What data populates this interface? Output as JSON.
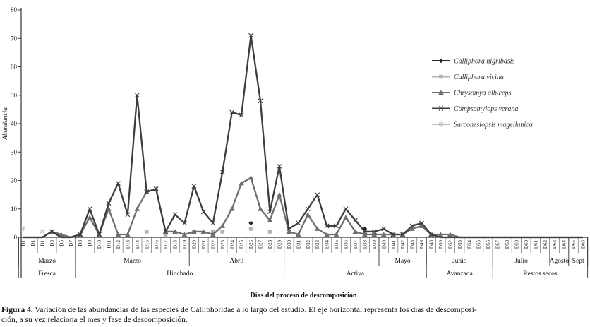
{
  "figure": {
    "caption_label": "Figura 4.",
    "caption_line1": " Variación de las abundancias de las especies de Calliphoridae a lo largo del estudio. El eje horizontal representa los días de descomposi-",
    "caption_line2": "ción, a su vez relaciona el mes y fase de descomposición."
  },
  "chart_data": {
    "type": "line",
    "title": "",
    "xlabel": "Días del proceso de descomposición",
    "ylabel": "Abundancia",
    "ylim": [
      0,
      80
    ],
    "yticks": [
      0,
      10,
      20,
      30,
      40,
      50,
      60,
      70,
      80
    ],
    "grid": false,
    "legend_position": "upper-right-inside",
    "x": [
      "D1",
      "D1",
      "D1",
      "D3",
      "D5",
      "D7",
      "D8",
      "D9",
      "D10",
      "D11",
      "D12",
      "D13",
      "D14",
      "D15",
      "D16",
      "D17",
      "D18",
      "D19",
      "D20",
      "D21",
      "D22",
      "D23",
      "D24",
      "D25",
      "D26",
      "D27",
      "D28",
      "D29",
      "D30",
      "D31",
      "D32",
      "D33",
      "D34",
      "D35",
      "D36",
      "D37",
      "D38",
      "D39",
      "D40",
      "D41",
      "D42",
      "D43",
      "D46",
      "D48",
      "D50",
      "D52",
      "D53",
      "D54",
      "D55",
      "D56",
      "D57",
      "D58",
      "D59",
      "D60",
      "D61",
      "D62",
      "D63",
      "D64",
      "D65",
      "D66"
    ],
    "series": [
      {
        "name": "Calliphora nigribasis",
        "marker": "diamond",
        "color": "#262626",
        "line": false,
        "values": [
          0,
          0,
          0,
          0,
          0,
          0,
          0,
          0,
          0,
          0,
          0,
          0,
          0,
          0,
          0,
          0,
          0,
          0,
          0,
          0,
          0,
          0,
          0,
          0,
          5,
          0,
          0,
          0,
          0,
          0,
          0,
          0,
          0,
          0,
          0,
          0,
          3,
          0,
          0,
          0,
          0,
          0,
          0,
          0,
          0,
          0,
          0,
          0,
          0,
          0,
          0,
          0,
          0,
          0,
          0,
          0,
          0,
          0,
          0,
          0
        ]
      },
      {
        "name": "Calliphora vicina",
        "marker": "square",
        "color": "#b3b3b3",
        "line": false,
        "values": [
          0,
          0,
          0,
          0,
          0,
          0,
          0,
          0,
          0,
          0,
          0,
          0,
          0,
          2,
          0,
          1,
          0,
          0,
          2,
          0,
          2,
          2,
          0,
          0,
          3,
          0,
          2,
          0,
          0,
          0,
          0,
          0,
          0,
          0,
          0,
          0,
          0,
          0,
          0,
          0,
          0,
          0,
          0,
          0,
          0,
          0,
          0,
          0,
          0,
          0,
          0,
          0,
          0,
          0,
          0,
          0,
          0,
          0,
          0,
          0
        ]
      },
      {
        "name": "Chrysomya albiceps",
        "marker": "triangle",
        "color": "#6e6e6e",
        "line": true,
        "values": [
          0,
          0,
          0,
          2,
          1,
          0,
          1,
          7,
          1,
          10,
          1,
          1,
          10,
          16,
          17,
          2,
          2,
          1,
          2,
          2,
          1,
          4,
          10,
          19,
          21,
          10,
          6,
          15,
          2,
          1,
          8,
          3,
          1,
          1,
          7,
          2,
          1,
          1,
          1,
          1,
          1,
          3,
          4,
          1,
          1,
          1,
          0,
          0,
          0,
          0,
          0,
          0,
          0,
          0,
          0,
          0,
          0,
          0,
          0,
          0
        ]
      },
      {
        "name": "Compsomyiops verana",
        "marker": "x",
        "color": "#3d3d3d",
        "line": true,
        "values": [
          0,
          0,
          0,
          2,
          0,
          0,
          1,
          10,
          1,
          12,
          19,
          8,
          50,
          16,
          17,
          2,
          8,
          5,
          18,
          9,
          5,
          23,
          44,
          43,
          71,
          48,
          9,
          25,
          3,
          5,
          10,
          15,
          4,
          4,
          10,
          6,
          2,
          2,
          3,
          1,
          1,
          4,
          5,
          1,
          0,
          0,
          0,
          0,
          0,
          0,
          0,
          0,
          0,
          0,
          0,
          0,
          0,
          0,
          0,
          0
        ]
      },
      {
        "name": "Sarconesiopsis magellanica",
        "marker": "star",
        "color": "#bdbdbd",
        "line": false,
        "values": [
          3,
          0,
          2,
          0,
          0,
          0,
          0,
          0,
          0,
          0,
          0,
          0,
          0,
          0,
          0,
          0,
          0,
          0,
          0,
          0,
          0,
          0,
          0,
          0,
          0,
          0,
          0,
          0,
          0,
          1,
          0,
          0,
          0,
          0,
          0,
          0,
          0,
          0,
          0,
          0,
          0,
          0,
          0,
          0,
          0,
          0,
          0,
          0,
          0,
          0,
          0,
          0,
          0,
          0,
          0,
          0,
          0,
          0,
          0,
          0
        ]
      }
    ],
    "month_groups": [
      {
        "label": "Marzo",
        "from": 0,
        "to": 6
      },
      {
        "label": "Marzo",
        "from": 6,
        "to": 18
      },
      {
        "label": "Abril",
        "from": 18,
        "to": 28
      },
      {
        "label": "",
        "from": 28,
        "to": 38
      },
      {
        "label": "Mayo",
        "from": 38,
        "to": 43
      },
      {
        "label": "Junio",
        "from": 43,
        "to": 50
      },
      {
        "label": "Julio",
        "from": 50,
        "to": 56
      },
      {
        "label": "Agosto",
        "from": 56,
        "to": 58
      },
      {
        "label": "Sept",
        "from": 58,
        "to": 60
      }
    ],
    "phase_groups": [
      {
        "label": "Fresca",
        "from": 0,
        "to": 6
      },
      {
        "label": "Hinchado",
        "from": 6,
        "to": 28
      },
      {
        "label": "Activa",
        "from": 28,
        "to": 43
      },
      {
        "label": "Avanzada",
        "from": 43,
        "to": 50
      },
      {
        "label": "Restos secos",
        "from": 50,
        "to": 60
      }
    ]
  }
}
